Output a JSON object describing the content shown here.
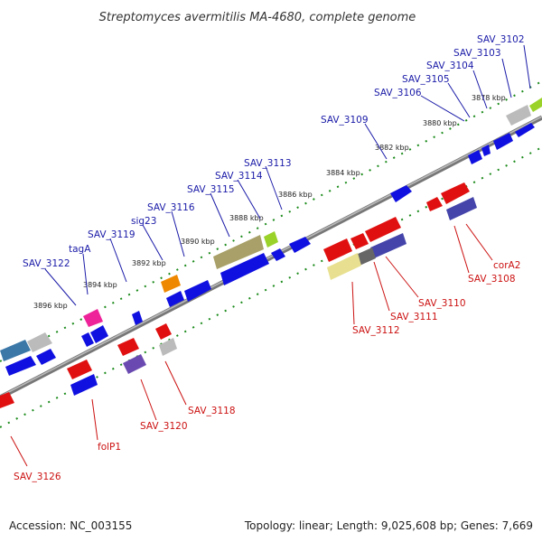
{
  "title": "Streptomyces avermitilis MA-4680, complete genome",
  "accession": "Accession: NC_003155",
  "topology": "Topology: linear; Length: 9,025,608 bp; Genes: 7,669",
  "colors": {
    "forward_gene": "#1010e0",
    "reverse_gene": "#e01010",
    "backbone": "#888888",
    "tick": "#1a8a1a",
    "top_label": "#1a1aa8",
    "bottom_label": "#cc1111"
  },
  "kbp_labels": [
    "3878 kbp",
    "3880 kbp",
    "3882 kbp",
    "3884 kbp",
    "3886 kbp",
    "3888 kbp",
    "3890 kbp",
    "3892 kbp",
    "3894 kbp",
    "3896 kbp"
  ],
  "top_labels": [
    "SAV_3102",
    "SAV_3103",
    "SAV_3104",
    "SAV_3105",
    "SAV_3106",
    "SAV_3109",
    "SAV_3113",
    "SAV_3114",
    "SAV_3115",
    "SAV_3116",
    "sig23",
    "SAV_3119",
    "tagA",
    "SAV_3122"
  ],
  "bottom_labels": [
    "corA2",
    "SAV_3108",
    "SAV_3110",
    "SAV_3111",
    "SAV_3112",
    "SAV_3118",
    "SAV_3120",
    "folP1",
    "SAV_3126"
  ]
}
